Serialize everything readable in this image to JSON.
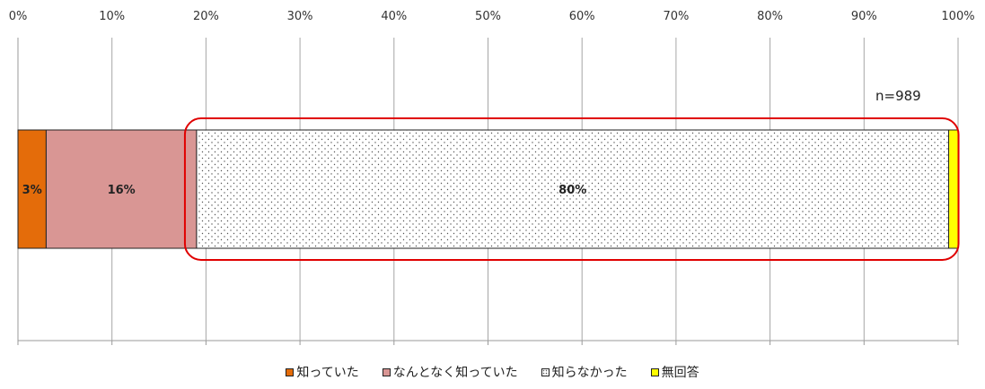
{
  "chart_data": {
    "type": "bar",
    "orientation": "horizontal",
    "stacked": true,
    "title": "",
    "xlabel": "",
    "ylabel": "",
    "xlim": [
      0,
      100
    ],
    "tick_labels": [
      "0%",
      "10%",
      "20%",
      "30%",
      "40%",
      "50%",
      "60%",
      "70%",
      "80%",
      "90%",
      "100%"
    ],
    "grid": true,
    "legend_position": "bottom",
    "annotation": "n=989",
    "highlight_series": "知らなかった",
    "highlight_color": "#e00000",
    "series": [
      {
        "name": "知っていた",
        "value": 3,
        "label": "3%",
        "color": "#e46c0a",
        "pattern": "solid"
      },
      {
        "name": "なんとなく知っていた",
        "value": 16,
        "label": "16%",
        "color": "#d99694",
        "pattern": "solid"
      },
      {
        "name": "知らなかった",
        "value": 80,
        "label": "80%",
        "color": "#ffffff",
        "pattern": "dots"
      },
      {
        "name": "無回答",
        "value": 1,
        "label": "",
        "color": "#ffff00",
        "pattern": "solid"
      }
    ]
  }
}
